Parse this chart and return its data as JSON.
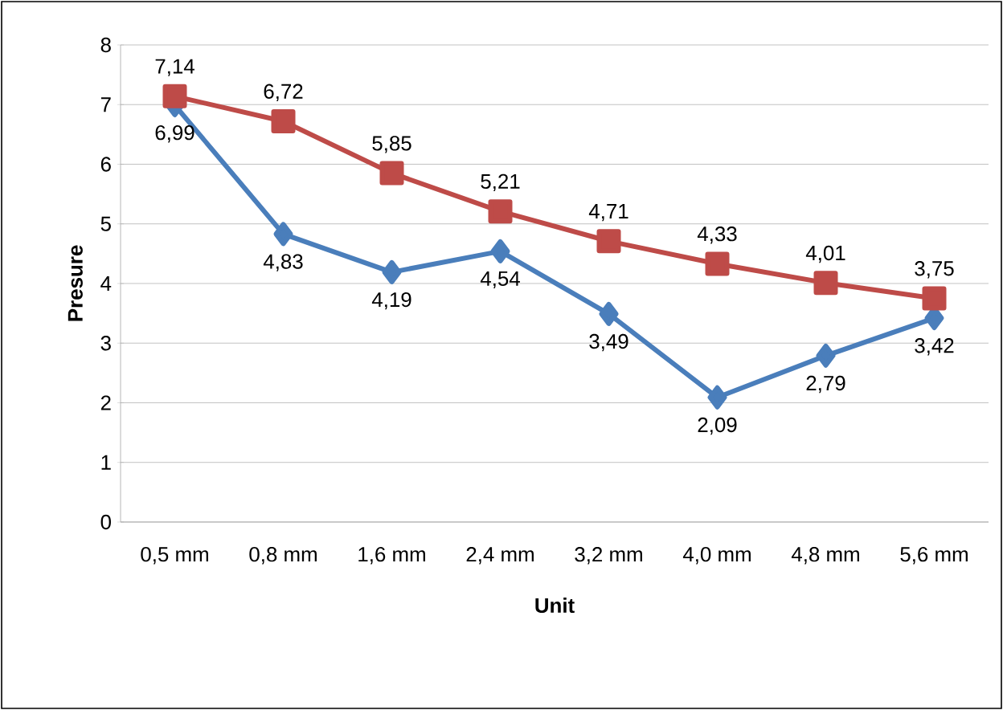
{
  "chart_data": {
    "type": "line",
    "xlabel": "Unit",
    "ylabel": "Presure",
    "categories": [
      "0,5 mm",
      "0,8 mm",
      "1,6 mm",
      "2,4 mm",
      "3,2 mm",
      "4,0 mm",
      "4,8 mm",
      "5,6 mm"
    ],
    "series": [
      {
        "color": "#4a7ebb",
        "marker": "diamond",
        "values": [
          6.99,
          4.83,
          4.19,
          4.54,
          3.49,
          2.09,
          2.79,
          3.42
        ],
        "value_labels": [
          "6,99",
          "4,83",
          "4,19",
          "4,54",
          "3,49",
          "2,09",
          "2,79",
          "3,42"
        ]
      },
      {
        "color": "#be4b48",
        "marker": "square",
        "values": [
          7.14,
          6.72,
          5.85,
          5.21,
          4.71,
          4.33,
          4.01,
          3.75
        ],
        "value_labels": [
          "7,14",
          "6,72",
          "5,85",
          "5,21",
          "4,71",
          "4,33",
          "4,01",
          "3,75"
        ]
      }
    ],
    "ylim": [
      0,
      8
    ],
    "yticks": [
      0,
      1,
      2,
      3,
      4,
      5,
      6,
      7,
      8
    ],
    "grid": "y"
  }
}
